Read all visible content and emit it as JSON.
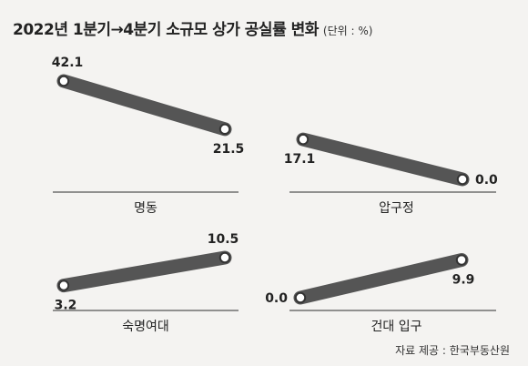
{
  "title": "2022년 1분기→4분기 소규모 상가 공실률 변화",
  "unit": "(단위 : %)",
  "source": "자료 제공 : 한국부동산원",
  "colors": {
    "background": "#f4f3f1",
    "bar": "#555555",
    "dot_stroke": "#333333",
    "dot_fill": "#ffffff",
    "axis_line": "#555555"
  },
  "chart_data": [
    {
      "type": "slope",
      "label": "명동",
      "x": [
        "1분기",
        "4분기"
      ],
      "values": [
        42.1,
        21.5
      ],
      "value_labels": [
        "42.1",
        "21.5"
      ]
    },
    {
      "type": "slope",
      "label": "압구정",
      "x": [
        "1분기",
        "4분기"
      ],
      "values": [
        17.1,
        0.0
      ],
      "value_labels": [
        "17.1",
        "0.0"
      ]
    },
    {
      "type": "slope",
      "label": "숙명여대",
      "x": [
        "1분기",
        "4분기"
      ],
      "values": [
        3.2,
        10.5
      ],
      "value_labels": [
        "3.2",
        "10.5"
      ]
    },
    {
      "type": "slope",
      "label": "건대 입구",
      "x": [
        "1분기",
        "4분기"
      ],
      "values": [
        0.0,
        9.9
      ],
      "value_labels": [
        "0.0",
        "9.9"
      ]
    }
  ]
}
